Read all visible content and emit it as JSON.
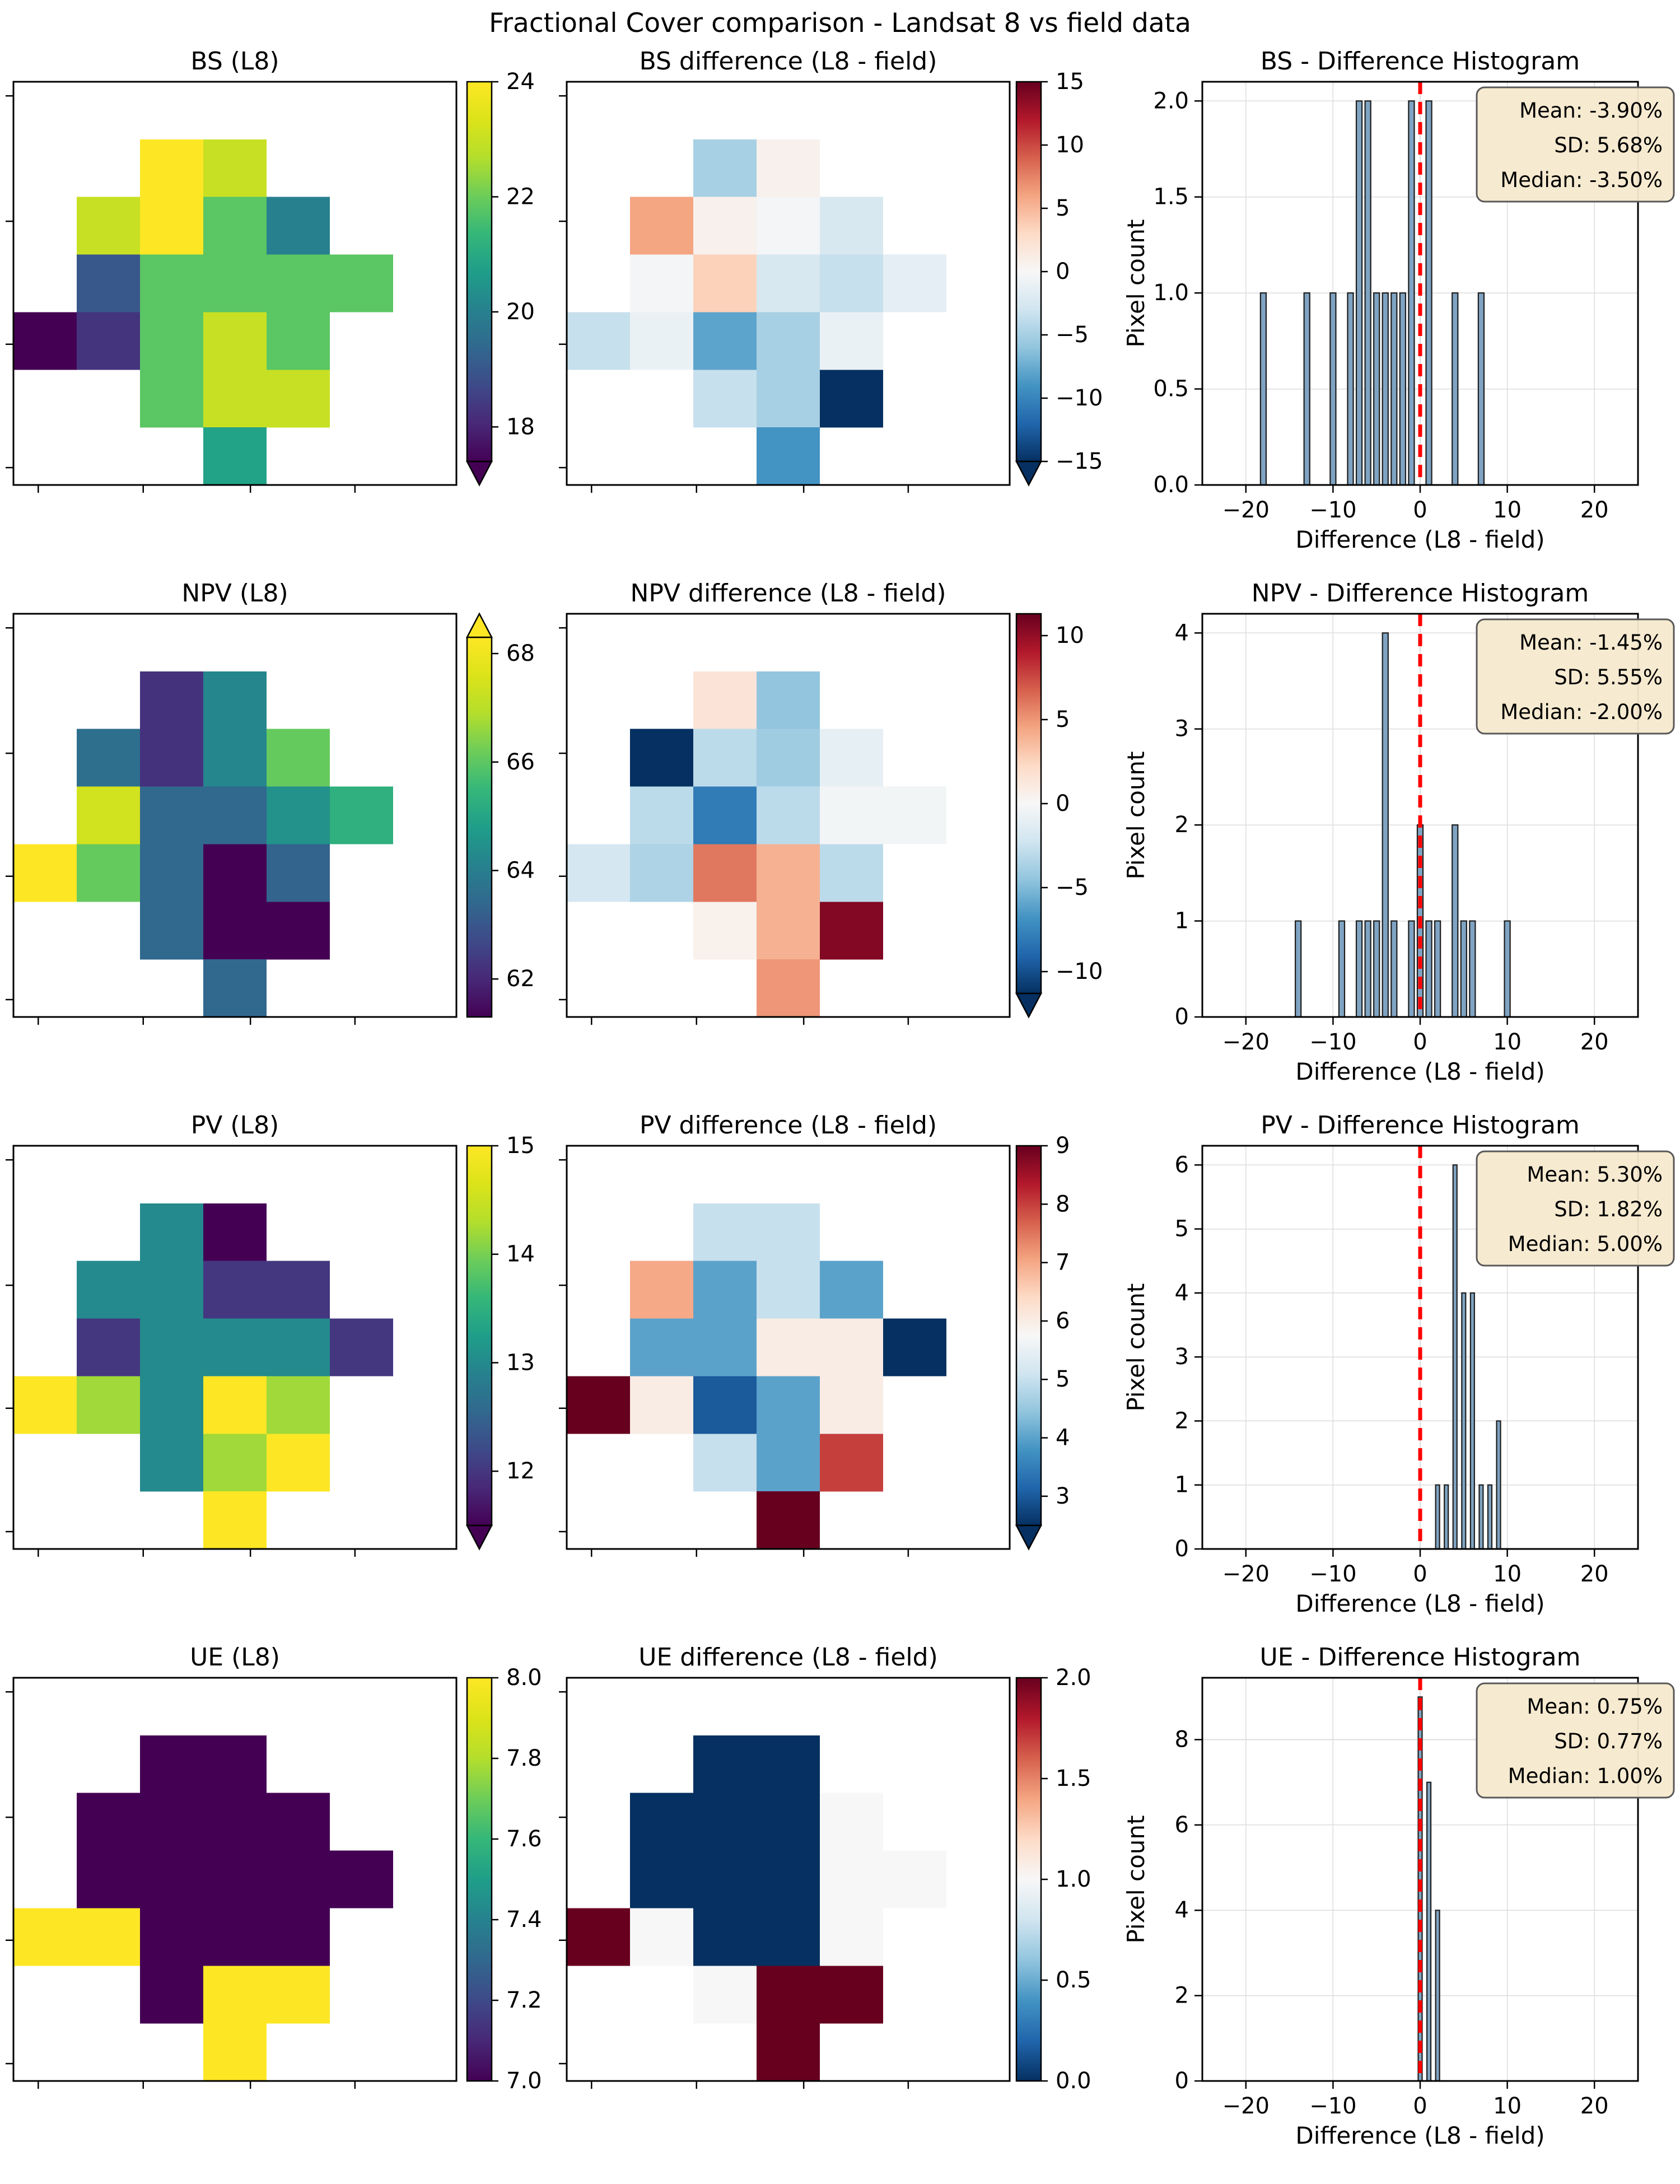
{
  "figure": {
    "title": "Fractional Cover comparison - Landsat 8 vs field data"
  },
  "style": {
    "accent_bar_fill": "#7fa3c2",
    "accent_bar_edge": "#1f1f1f",
    "zero_line_color": "#ff0000",
    "stats_box_bg": "#f6e9cd",
    "stats_box_border": "#595959",
    "grid_color": "#dcdcdc",
    "axis_color": "#000000"
  },
  "chart_data": [
    {
      "id": "bs-l8",
      "type": "heatmap",
      "row": 0,
      "col": 0,
      "title": "BS (L8)",
      "cmap": "viridis",
      "vmin": 17.4,
      "vmax": 24,
      "extend": "min",
      "colorbar_ticks": [
        {
          "v": 24,
          "label": "24"
        },
        {
          "v": 22,
          "label": "22"
        },
        {
          "v": 20,
          "label": "20"
        },
        {
          "v": 18,
          "label": "18"
        }
      ],
      "grid": [
        [
          null,
          null,
          null,
          null,
          null,
          null,
          null
        ],
        [
          null,
          null,
          24,
          23,
          null,
          null,
          null
        ],
        [
          null,
          23,
          24,
          21.8,
          20,
          null,
          null
        ],
        [
          null,
          19,
          21.8,
          21.8,
          21.8,
          21.8,
          null
        ],
        [
          17,
          18.3,
          21.8,
          23,
          21.8,
          null,
          null
        ],
        [
          null,
          null,
          21.8,
          23,
          23,
          null,
          null
        ],
        [
          null,
          null,
          null,
          20.8,
          null,
          null,
          null
        ]
      ]
    },
    {
      "id": "bs-diff",
      "type": "heatmap",
      "row": 0,
      "col": 1,
      "title": "BS difference (L8 - field)",
      "cmap": "rdbu_r",
      "vmin": -15,
      "vmax": 15,
      "extend": "min",
      "colorbar_ticks": [
        {
          "v": 15,
          "label": "15"
        },
        {
          "v": 10,
          "label": "10"
        },
        {
          "v": 5,
          "label": "5"
        },
        {
          "v": 0,
          "label": "0"
        },
        {
          "v": -5,
          "label": "−5"
        },
        {
          "v": -10,
          "label": "−10"
        },
        {
          "v": -15,
          "label": "−15"
        }
      ],
      "grid": [
        [
          null,
          null,
          null,
          null,
          null,
          null,
          null
        ],
        [
          null,
          null,
          -5,
          0.7,
          null,
          null,
          null
        ],
        [
          null,
          6,
          0.7,
          -0.3,
          -2.5,
          null,
          null
        ],
        [
          null,
          -0.3,
          3.5,
          -2.5,
          -3.5,
          -1.5,
          null
        ],
        [
          -3.5,
          -1,
          -8,
          -5,
          -1,
          null,
          null
        ],
        [
          null,
          null,
          -3.5,
          -5,
          -16,
          null,
          null
        ],
        [
          null,
          null,
          null,
          -9,
          null,
          null,
          null
        ]
      ]
    },
    {
      "id": "bs-hist",
      "type": "histogram",
      "row": 0,
      "col": 2,
      "title": "BS - Difference Histogram",
      "xlabel": "Difference (L8 - field)",
      "ylabel": "Pixel count",
      "xlim": [
        -25,
        25
      ],
      "ylim": [
        0,
        2.1
      ],
      "xticks": [
        {
          "v": -20,
          "label": "−20"
        },
        {
          "v": -10,
          "label": "−10"
        },
        {
          "v": 0,
          "label": "0"
        },
        {
          "v": 10,
          "label": "10"
        },
        {
          "v": 20,
          "label": "20"
        }
      ],
      "yticks": [
        {
          "v": 0,
          "label": "0.0"
        },
        {
          "v": 0.5,
          "label": "0.5"
        },
        {
          "v": 1,
          "label": "1.0"
        },
        {
          "v": 1.5,
          "label": "1.5"
        },
        {
          "v": 2,
          "label": "2.0"
        }
      ],
      "bars_x": [
        -18,
        -13,
        -10,
        -8,
        -7,
        -6,
        -5,
        -4,
        -3,
        -2,
        -1,
        1,
        4,
        7
      ],
      "bars_h": [
        1,
        1,
        1,
        1,
        2,
        2,
        1,
        1,
        1,
        1,
        2,
        2,
        1,
        1
      ],
      "bar_width": 0.65,
      "vline": 0,
      "stats": [
        "Mean: -3.90%",
        "SD: 5.68%",
        "Median: -3.50%"
      ]
    },
    {
      "id": "npv-l8",
      "type": "heatmap",
      "row": 1,
      "col": 0,
      "title": "NPV (L8)",
      "cmap": "viridis",
      "vmin": 61.3,
      "vmax": 68.3,
      "extend": "max",
      "colorbar_ticks": [
        {
          "v": 68,
          "label": "68"
        },
        {
          "v": 66,
          "label": "66"
        },
        {
          "v": 64,
          "label": "64"
        },
        {
          "v": 62,
          "label": "62"
        }
      ],
      "grid": [
        [
          null,
          null,
          null,
          null,
          null,
          null,
          null
        ],
        [
          null,
          null,
          62.2,
          64.2,
          null,
          null,
          null
        ],
        [
          null,
          63.6,
          62.2,
          64.2,
          66.1,
          null,
          null
        ],
        [
          null,
          67.4,
          63.4,
          63.4,
          64.5,
          65.3,
          null
        ],
        [
          68.7,
          66.1,
          63.4,
          61.0,
          63.3,
          null,
          null
        ],
        [
          null,
          null,
          63.4,
          61.2,
          61.2,
          null,
          null
        ],
        [
          null,
          null,
          null,
          63.4,
          null,
          null,
          null
        ]
      ]
    },
    {
      "id": "npv-diff",
      "type": "heatmap",
      "row": 1,
      "col": 1,
      "title": "NPV difference (L8 - field)",
      "cmap": "rdbu_r",
      "vmin": -11.3,
      "vmax": 11.3,
      "extend": "min",
      "colorbar_ticks": [
        {
          "v": 10,
          "label": "10"
        },
        {
          "v": 5,
          "label": "5"
        },
        {
          "v": 0,
          "label": "0"
        },
        {
          "v": -5,
          "label": "−5"
        },
        {
          "v": -10,
          "label": "−10"
        }
      ],
      "grid": [
        [
          null,
          null,
          null,
          null,
          null,
          null,
          null
        ],
        [
          null,
          null,
          1.5,
          -4.5,
          null,
          null,
          null
        ],
        [
          null,
          -12,
          -3,
          -4,
          -1,
          null,
          null
        ],
        [
          null,
          -3,
          -8,
          -3,
          -0.3,
          -0.3,
          null
        ],
        [
          -2,
          -3.5,
          6,
          4,
          -3,
          null,
          null
        ],
        [
          null,
          null,
          0.5,
          4,
          10.5,
          null,
          null
        ],
        [
          null,
          null,
          null,
          5,
          null,
          null,
          null
        ]
      ]
    },
    {
      "id": "npv-hist",
      "type": "histogram",
      "row": 1,
      "col": 2,
      "title": "NPV - Difference Histogram",
      "xlabel": "Difference (L8 - field)",
      "ylabel": "Pixel count",
      "xlim": [
        -25,
        25
      ],
      "ylim": [
        0,
        4.2
      ],
      "xticks": [
        {
          "v": -20,
          "label": "−20"
        },
        {
          "v": -10,
          "label": "−10"
        },
        {
          "v": 0,
          "label": "0"
        },
        {
          "v": 10,
          "label": "10"
        },
        {
          "v": 20,
          "label": "20"
        }
      ],
      "yticks": [
        {
          "v": 0,
          "label": "0"
        },
        {
          "v": 1,
          "label": "1"
        },
        {
          "v": 2,
          "label": "2"
        },
        {
          "v": 3,
          "label": "3"
        },
        {
          "v": 4,
          "label": "4"
        }
      ],
      "bars_x": [
        -14,
        -9,
        -7,
        -6,
        -5,
        -4,
        -3,
        -1,
        0,
        1,
        2,
        4,
        5,
        6,
        10
      ],
      "bars_h": [
        1,
        1,
        1,
        1,
        1,
        4,
        1,
        1,
        2,
        1,
        1,
        2,
        1,
        1,
        1
      ],
      "bar_width": 0.65,
      "vline": 0,
      "stats": [
        "Mean: -1.45%",
        "SD: 5.55%",
        "Median: -2.00%"
      ]
    },
    {
      "id": "pv-l8",
      "type": "heatmap",
      "row": 2,
      "col": 0,
      "title": "PV (L8)",
      "cmap": "viridis",
      "vmin": 11.5,
      "vmax": 15,
      "extend": "min",
      "colorbar_ticks": [
        {
          "v": 15,
          "label": "15"
        },
        {
          "v": 14,
          "label": "14"
        },
        {
          "v": 13,
          "label": "13"
        },
        {
          "v": 12,
          "label": "12"
        }
      ],
      "grid": [
        [
          null,
          null,
          null,
          null,
          null,
          null,
          null
        ],
        [
          null,
          null,
          13,
          11.3,
          null,
          null,
          null
        ],
        [
          null,
          13,
          13,
          12,
          12,
          null,
          null
        ],
        [
          null,
          12,
          13,
          13,
          13,
          12,
          null
        ],
        [
          15,
          14.2,
          13,
          15,
          14.2,
          null,
          null
        ],
        [
          null,
          null,
          13,
          14.2,
          15,
          null,
          null
        ],
        [
          null,
          null,
          null,
          15,
          null,
          null,
          null
        ]
      ]
    },
    {
      "id": "pv-diff",
      "type": "heatmap",
      "row": 2,
      "col": 1,
      "title": "PV difference (L8 - field)",
      "cmap": "rdbu_r",
      "vmin": 2.5,
      "vmax": 9,
      "extend": "min",
      "colorbar_ticks": [
        {
          "v": 9,
          "label": "9"
        },
        {
          "v": 8,
          "label": "8"
        },
        {
          "v": 7,
          "label": "7"
        },
        {
          "v": 6,
          "label": "6"
        },
        {
          "v": 5,
          "label": "5"
        },
        {
          "v": 4,
          "label": "4"
        },
        {
          "v": 3,
          "label": "3"
        }
      ],
      "grid": [
        [
          null,
          null,
          null,
          null,
          null,
          null,
          null
        ],
        [
          null,
          null,
          5,
          5,
          null,
          null,
          null
        ],
        [
          null,
          7,
          4,
          5,
          4,
          null,
          null
        ],
        [
          null,
          4,
          4,
          6,
          6,
          2,
          null
        ],
        [
          9,
          6,
          3,
          4,
          6,
          null,
          null
        ],
        [
          null,
          null,
          5,
          4,
          8,
          null,
          null
        ],
        [
          null,
          null,
          null,
          9,
          null,
          null,
          null
        ]
      ]
    },
    {
      "id": "pv-hist",
      "type": "histogram",
      "row": 2,
      "col": 2,
      "title": "PV - Difference Histogram",
      "xlabel": "Difference (L8 - field)",
      "ylabel": "Pixel count",
      "xlim": [
        -25,
        25
      ],
      "ylim": [
        0,
        6.3
      ],
      "xticks": [
        {
          "v": -20,
          "label": "−20"
        },
        {
          "v": -10,
          "label": "−10"
        },
        {
          "v": 0,
          "label": "0"
        },
        {
          "v": 10,
          "label": "10"
        },
        {
          "v": 20,
          "label": "20"
        }
      ],
      "yticks": [
        {
          "v": 0,
          "label": "0"
        },
        {
          "v": 1,
          "label": "1"
        },
        {
          "v": 2,
          "label": "2"
        },
        {
          "v": 3,
          "label": "3"
        },
        {
          "v": 4,
          "label": "4"
        },
        {
          "v": 5,
          "label": "5"
        },
        {
          "v": 6,
          "label": "6"
        }
      ],
      "bars_x": [
        2,
        3,
        4,
        5,
        6,
        7,
        8,
        9
      ],
      "bars_h": [
        1,
        1,
        6,
        4,
        4,
        1,
        1,
        2
      ],
      "bar_width": 0.45,
      "vline": 0,
      "stats": [
        "Mean: 5.30%",
        "SD: 1.82%",
        "Median: 5.00%"
      ]
    },
    {
      "id": "ue-l8",
      "type": "heatmap",
      "row": 3,
      "col": 0,
      "title": "UE (L8)",
      "cmap": "viridis",
      "vmin": 7,
      "vmax": 8,
      "extend": "none",
      "colorbar_ticks": [
        {
          "v": 8,
          "label": "8.0"
        },
        {
          "v": 7.8,
          "label": "7.8"
        },
        {
          "v": 7.6,
          "label": "7.6"
        },
        {
          "v": 7.4,
          "label": "7.4"
        },
        {
          "v": 7.2,
          "label": "7.2"
        },
        {
          "v": 7,
          "label": "7.0"
        }
      ],
      "grid": [
        [
          null,
          null,
          null,
          null,
          null,
          null,
          null
        ],
        [
          null,
          null,
          7,
          7,
          null,
          null,
          null
        ],
        [
          null,
          7,
          7,
          7,
          7,
          null,
          null
        ],
        [
          null,
          7,
          7,
          7,
          7,
          7,
          null
        ],
        [
          8,
          8,
          7,
          7,
          7,
          null,
          null
        ],
        [
          null,
          null,
          7,
          8,
          8,
          null,
          null
        ],
        [
          null,
          null,
          null,
          8,
          null,
          null,
          null
        ]
      ]
    },
    {
      "id": "ue-diff",
      "type": "heatmap",
      "row": 3,
      "col": 1,
      "title": "UE difference (L8 - field)",
      "cmap": "rdbu_r",
      "vmin": 0,
      "vmax": 2,
      "extend": "none",
      "colorbar_ticks": [
        {
          "v": 2,
          "label": "2.0"
        },
        {
          "v": 1.5,
          "label": "1.5"
        },
        {
          "v": 1,
          "label": "1.0"
        },
        {
          "v": 0.5,
          "label": "0.5"
        },
        {
          "v": 0,
          "label": "0.0"
        }
      ],
      "grid": [
        [
          null,
          null,
          null,
          null,
          null,
          null,
          null
        ],
        [
          null,
          null,
          0,
          0,
          null,
          null,
          null
        ],
        [
          null,
          0,
          0,
          0,
          1,
          null,
          null
        ],
        [
          null,
          0,
          0,
          0,
          1,
          1,
          null
        ],
        [
          2,
          1,
          0,
          0,
          1,
          null,
          null
        ],
        [
          null,
          null,
          1,
          2,
          2,
          null,
          null
        ],
        [
          null,
          null,
          null,
          2,
          null,
          null,
          null
        ]
      ]
    },
    {
      "id": "ue-hist",
      "type": "histogram",
      "row": 3,
      "col": 2,
      "title": "UE - Difference Histogram",
      "xlabel": "Difference (L8 - field)",
      "ylabel": "Pixel count",
      "xlim": [
        -25,
        25
      ],
      "ylim": [
        0,
        9.45
      ],
      "xticks": [
        {
          "v": -20,
          "label": "−20"
        },
        {
          "v": -10,
          "label": "−10"
        },
        {
          "v": 0,
          "label": "0"
        },
        {
          "v": 10,
          "label": "10"
        },
        {
          "v": 20,
          "label": "20"
        }
      ],
      "yticks": [
        {
          "v": 0,
          "label": "0"
        },
        {
          "v": 2,
          "label": "2"
        },
        {
          "v": 4,
          "label": "4"
        },
        {
          "v": 6,
          "label": "6"
        },
        {
          "v": 8,
          "label": "8"
        }
      ],
      "bars_x": [
        0,
        1,
        2
      ],
      "bars_h": [
        9,
        7,
        4
      ],
      "bar_width": 0.45,
      "vline": 0,
      "stats": [
        "Mean: 0.75%",
        "SD: 0.77%",
        "Median: 1.00%"
      ]
    }
  ]
}
